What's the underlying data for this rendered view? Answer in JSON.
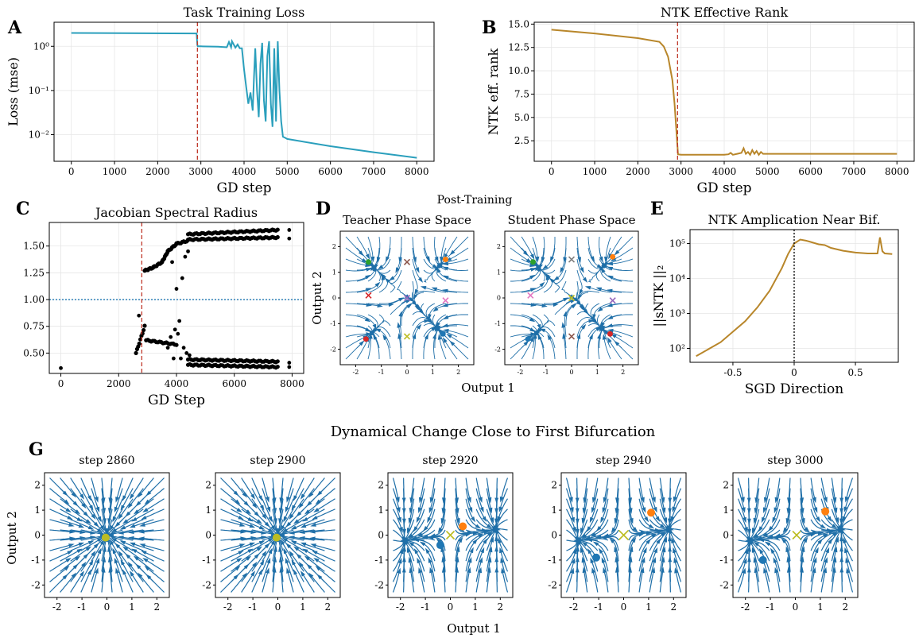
{
  "panel_letters": {
    "a": "A",
    "b": "B",
    "c": "C",
    "d": "D",
    "e": "E",
    "g": "G"
  },
  "colors": {
    "teal": "#2a9fbc",
    "brown": "#b8862a",
    "red": "#c0392b",
    "blue": "#1f77b4",
    "orange": "#ff7f0e",
    "green": "#2ca02c",
    "purple": "#9467bd",
    "olive": "#bcbd22"
  },
  "chart_data": [
    {
      "id": "A",
      "type": "line",
      "title": "Task Training Loss",
      "xlabel": "GD step",
      "ylabel": "Loss (mse)",
      "yscale": "log",
      "xlim": [
        -400,
        8400
      ],
      "ylim": [
        0.0025,
        3.5
      ],
      "xticks": [
        0,
        1000,
        2000,
        3000,
        4000,
        5000,
        6000,
        7000,
        8000
      ],
      "yticks": [
        {
          "v": 1,
          "label": "10⁰"
        },
        {
          "v": 0.1,
          "label": "10⁻¹"
        },
        {
          "v": 0.01,
          "label": "10⁻²"
        }
      ],
      "vline": 2920,
      "series": [
        {
          "color": "#2a9fbc",
          "x": [
            0,
            2900,
            2920,
            2930,
            3000,
            3400,
            3600,
            3650,
            3700,
            3720,
            3800,
            3850,
            3900,
            3950,
            4000,
            4050,
            4100,
            4150,
            4200,
            4230,
            4260,
            4300,
            4340,
            4380,
            4420,
            4460,
            4500,
            4540,
            4580,
            4620,
            4660,
            4700,
            4740,
            4780,
            4820,
            4860,
            4900,
            4950,
            5000,
            6000,
            7000,
            8000
          ],
          "y": [
            2.0,
            1.95,
            1.05,
            1.0,
            1.0,
            0.98,
            0.95,
            1.25,
            0.95,
            1.3,
            0.93,
            1.1,
            0.9,
            0.9,
            0.3,
            0.12,
            0.05,
            0.09,
            0.035,
            0.2,
            0.9,
            0.1,
            0.025,
            0.4,
            1.2,
            0.06,
            0.02,
            0.6,
            1.3,
            0.05,
            0.015,
            0.9,
            0.02,
            1.3,
            0.1,
            0.02,
            0.009,
            0.0085,
            0.008,
            0.0055,
            0.004,
            0.003
          ]
        }
      ]
    },
    {
      "id": "B",
      "type": "line",
      "title": "NTK Effective Rank",
      "xlabel": "GD step",
      "ylabel": "NTK eff. rank",
      "xlim": [
        -400,
        8400
      ],
      "ylim": [
        0.3,
        15.2
      ],
      "xticks": [
        0,
        1000,
        2000,
        3000,
        4000,
        5000,
        6000,
        7000,
        8000
      ],
      "yticks": [
        2.5,
        5.0,
        7.5,
        10.0,
        12.5,
        15.0
      ],
      "vline": 2920,
      "series": [
        {
          "color": "#b8862a",
          "x": [
            0,
            1000,
            2000,
            2500,
            2600,
            2700,
            2800,
            2850,
            2900,
            2930,
            3000,
            4000,
            4100,
            4150,
            4200,
            4300,
            4400,
            4450,
            4500,
            4550,
            4600,
            4650,
            4700,
            4750,
            4800,
            4850,
            4900,
            5000,
            6000,
            7000,
            8000
          ],
          "y": [
            14.4,
            14.0,
            13.5,
            13.1,
            12.6,
            11.5,
            9.0,
            6.5,
            3.0,
            1.05,
            1.0,
            1.0,
            1.05,
            1.2,
            1.0,
            1.1,
            1.2,
            1.7,
            1.1,
            1.3,
            1.0,
            1.5,
            1.1,
            1.4,
            1.0,
            1.3,
            1.1,
            1.1,
            1.1,
            1.1,
            1.1
          ]
        }
      ]
    },
    {
      "id": "C",
      "type": "scatter",
      "title": "Jacobian Spectral Radius",
      "xlabel": "GD Step",
      "ylabel": "",
      "xlim": [
        -400,
        8400
      ],
      "ylim": [
        0.31,
        1.72
      ],
      "xticks": [
        0,
        2000,
        4000,
        6000,
        8000
      ],
      "yticks": [
        0.5,
        0.75,
        1.0,
        1.25,
        1.5
      ],
      "vline": 2800,
      "hline": 1.0,
      "bands": [
        {
          "x0": 2900,
          "x1": 3200,
          "y0": 1.27,
          "y1": 1.3
        },
        {
          "x0": 3200,
          "x1": 3500,
          "y0": 1.3,
          "y1": 1.35
        },
        {
          "x0": 3500,
          "x1": 3700,
          "y0": 1.35,
          "y1": 1.45
        },
        {
          "x0": 3700,
          "x1": 4000,
          "y0": 1.45,
          "y1": 1.52
        },
        {
          "x0": 4000,
          "x1": 4400,
          "y0": 1.52,
          "y1": 1.55
        },
        {
          "x0": 4400,
          "x1": 7500,
          "y0": 1.56,
          "y1": 1.58
        },
        {
          "x0": 4400,
          "x1": 7500,
          "y0": 1.61,
          "y1": 1.65
        },
        {
          "x0": 2600,
          "x1": 2900,
          "y0": 0.5,
          "y1": 0.75
        },
        {
          "x0": 2950,
          "x1": 4000,
          "y0": 0.62,
          "y1": 0.58
        },
        {
          "x0": 4400,
          "x1": 7500,
          "y0": 0.44,
          "y1": 0.42
        },
        {
          "x0": 4400,
          "x1": 7500,
          "y0": 0.39,
          "y1": 0.37
        }
      ],
      "points": [
        [
          0,
          0.36
        ],
        [
          7900,
          1.65
        ],
        [
          7900,
          1.57
        ],
        [
          7900,
          0.41
        ],
        [
          7900,
          0.37
        ],
        [
          3900,
          0.45
        ],
        [
          4000,
          1.1
        ],
        [
          3850,
          1.35
        ],
        [
          4100,
          0.8
        ],
        [
          4200,
          1.2
        ],
        [
          4250,
          0.55
        ],
        [
          4300,
          1.4
        ],
        [
          3800,
          0.65
        ],
        [
          4150,
          0.45
        ],
        [
          4350,
          0.5
        ],
        [
          4400,
          1.45
        ],
        [
          3950,
          0.72
        ],
        [
          4050,
          0.68
        ],
        [
          4450,
          0.48
        ],
        [
          3700,
          0.55
        ],
        [
          2700,
          0.85
        ]
      ]
    },
    {
      "id": "E",
      "type": "line",
      "title": "NTK  Amplication Near Bif.",
      "xlabel": "SGD Direction",
      "ylabel": "||sNTK ||₂",
      "yscale": "log",
      "xlim": [
        -0.85,
        0.85
      ],
      "ylim": [
        40,
        250000
      ],
      "xticks": [
        -0.5,
        0.0,
        0.5
      ],
      "yticks": [
        {
          "v": 100,
          "label": "10²"
        },
        {
          "v": 1000,
          "label": "10³"
        },
        {
          "v": 10000,
          "label": "10⁴"
        },
        {
          "v": 100000,
          "label": "10⁵"
        }
      ],
      "vline": 0.0,
      "series": [
        {
          "color": "#b8862a",
          "x": [
            -0.8,
            -0.6,
            -0.4,
            -0.3,
            -0.2,
            -0.1,
            -0.05,
            0.0,
            0.05,
            0.1,
            0.2,
            0.25,
            0.3,
            0.4,
            0.5,
            0.6,
            0.68,
            0.7,
            0.72,
            0.74,
            0.8
          ],
          "y": [
            60,
            150,
            600,
            1500,
            4500,
            20000,
            50000,
            100000,
            130000,
            120000,
            95000,
            90000,
            75000,
            62000,
            55000,
            52000,
            52000,
            150000,
            60000,
            52000,
            50000
          ]
        }
      ]
    }
  ],
  "panelD": {
    "suptitle": "Post-Training",
    "xlabel": "Output 1",
    "ylabel": "Output 2",
    "teacher_title": "Teacher Phase Space",
    "student_title": "Student Phase Space",
    "ticks": [
      -2,
      -1,
      0,
      1,
      2
    ]
  },
  "panelG": {
    "suptitle": "Dynamical Change Close to First Bifurcation",
    "xlabel": "Output 1",
    "ylabel": "Output 2",
    "ticks": [
      -2,
      -1,
      0,
      1,
      2
    ],
    "titles": [
      "step 2860",
      "step 2900",
      "step 2920",
      "step 2940",
      "step 3000"
    ]
  }
}
